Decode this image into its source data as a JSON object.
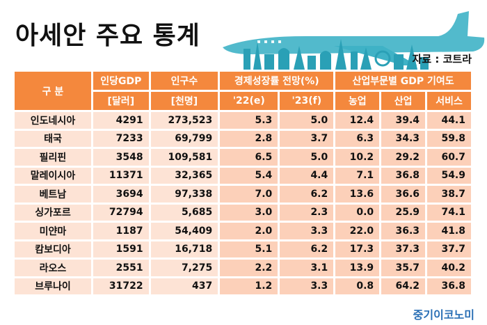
{
  "title": "아세안 주요 통계",
  "source": "자료 : 코트라",
  "watermark": "중기이코노미",
  "colors": {
    "header": "#f4883d",
    "cell_light": "#fde3d5",
    "cell_mid": "#fcd0b9",
    "banner": "#3fb2c6"
  },
  "header": {
    "category": "구  분",
    "gdp_pc": "인당GDP",
    "gdp_pc_unit": "[달러]",
    "population": "인구수",
    "population_unit": "[천명]",
    "growth": "경제성장률 전망(%)",
    "growth_22": "'22(e)",
    "growth_23": "'23(f)",
    "sector": "산업부문별 GDP 기여도",
    "agri": "농업",
    "industry": "산업",
    "service": "서비스"
  },
  "rows": [
    {
      "country": "인도네시아",
      "gdp_pc": "4291",
      "population": "273,523",
      "g22": "5.3",
      "g23": "5.0",
      "agri": "12.4",
      "industry": "39.4",
      "service": "44.1"
    },
    {
      "country": "태국",
      "gdp_pc": "7233",
      "population": "69,799",
      "g22": "2.8",
      "g23": "3.7",
      "agri": "6.3",
      "industry": "34.3",
      "service": "59.8"
    },
    {
      "country": "필리핀",
      "gdp_pc": "3548",
      "population": "109,581",
      "g22": "6.5",
      "g23": "5.0",
      "agri": "10.2",
      "industry": "29.2",
      "service": "60.7"
    },
    {
      "country": "말레이시아",
      "gdp_pc": "11371",
      "population": "32,365",
      "g22": "5.4",
      "g23": "4.4",
      "agri": "7.1",
      "industry": "36.8",
      "service": "54.9"
    },
    {
      "country": "베트남",
      "gdp_pc": "3694",
      "population": "97,338",
      "g22": "7.0",
      "g23": "6.2",
      "agri": "13.6",
      "industry": "36.6",
      "service": "38.7"
    },
    {
      "country": "싱가포르",
      "gdp_pc": "72794",
      "population": "5,685",
      "g22": "3.0",
      "g23": "2.3",
      "agri": "0.0",
      "industry": "25.9",
      "service": "74.1"
    },
    {
      "country": "미얀마",
      "gdp_pc": "1187",
      "population": "54,409",
      "g22": "2.0",
      "g23": "3.3",
      "agri": "22.0",
      "industry": "36.3",
      "service": "41.8"
    },
    {
      "country": "캄보디아",
      "gdp_pc": "1591",
      "population": "16,718",
      "g22": "5.1",
      "g23": "6.2",
      "agri": "17.3",
      "industry": "37.3",
      "service": "37.7"
    },
    {
      "country": "라오스",
      "gdp_pc": "2551",
      "population": "7,275",
      "g22": "2.2",
      "g23": "3.1",
      "agri": "13.9",
      "industry": "35.7",
      "service": "40.2"
    },
    {
      "country": "브루나이",
      "gdp_pc": "31722",
      "population": "437",
      "g22": "1.2",
      "g23": "3.3",
      "agri": "0.8",
      "industry": "64.2",
      "service": "36.8"
    }
  ]
}
